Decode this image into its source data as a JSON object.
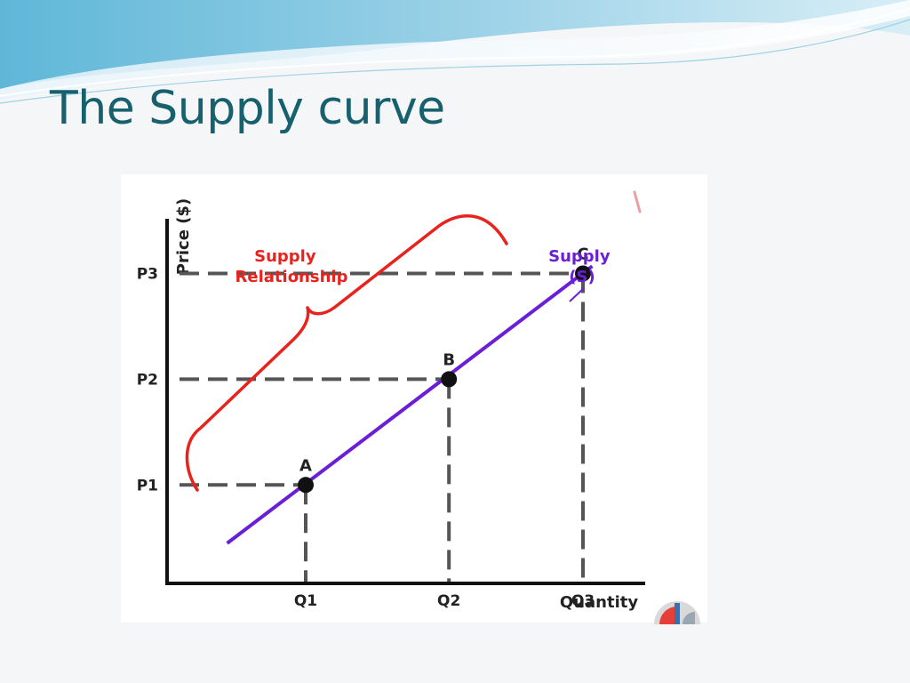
{
  "slide": {
    "title": "The Supply curve"
  },
  "chart_data": {
    "type": "line",
    "xlabel": "Quantity",
    "ylabel": "Price ($)",
    "xlim": [
      0,
      10
    ],
    "ylim": [
      0,
      10
    ],
    "series": [
      {
        "name": "Supply (S)",
        "label_lines": [
          "Supply",
          "(S)"
        ],
        "color": "#6a1fd6",
        "x": [
          1.3,
          9.2
        ],
        "y": [
          1.1,
          8.7
        ]
      }
    ],
    "points": [
      {
        "label": "A",
        "x": 3.0,
        "y": 2.7,
        "price_tick": "P1",
        "qty_tick": "Q1"
      },
      {
        "label": "B",
        "x": 6.1,
        "y": 5.6,
        "price_tick": "P2",
        "qty_tick": "Q2"
      },
      {
        "label": "C",
        "x": 9.0,
        "y": 8.5,
        "price_tick": "P3",
        "qty_tick": "Q3"
      }
    ],
    "x_ticks": [
      "Q1",
      "Q2",
      "Q3"
    ],
    "y_ticks": [
      "P1",
      "P2",
      "P3"
    ],
    "annotations": [
      {
        "text_lines": [
          "Supply",
          "Relationship"
        ],
        "color": "#e8231d"
      }
    ],
    "grid": false,
    "guide_lines": "dashed"
  },
  "colors": {
    "title": "#17606e",
    "supply_line": "#6a1fd6",
    "annotation": "#e8231d",
    "axis": "#111111",
    "guides": "#555555"
  }
}
